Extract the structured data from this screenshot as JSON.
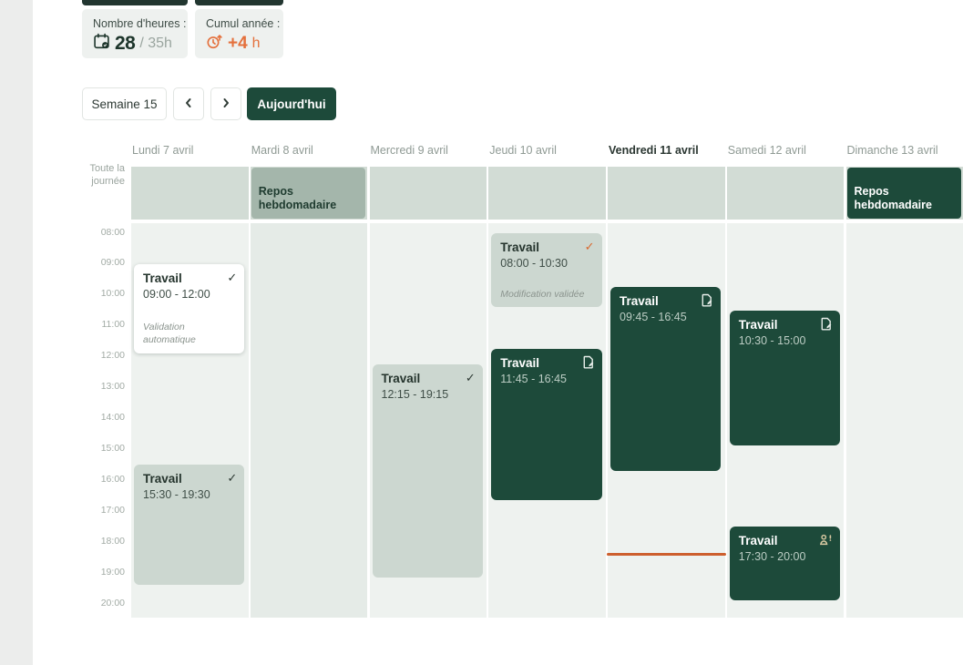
{
  "stats": {
    "hours": {
      "label": "Nombre d'heures :",
      "value": "28",
      "total": "/ 35h"
    },
    "cumul": {
      "label": "Cumul année :",
      "value": "+4",
      "unit": "h"
    }
  },
  "toolbar": {
    "week_label": "Semaine 15",
    "today_label": "Aujourd'hui"
  },
  "calendar": {
    "allday_label": "Toute la journée",
    "hours": [
      "08:00",
      "09:00",
      "10:00",
      "11:00",
      "12:00",
      "13:00",
      "14:00",
      "15:00",
      "16:00",
      "17:00",
      "18:00",
      "19:00",
      "20:00"
    ],
    "days": [
      {
        "label": "Lundi 7 avril"
      },
      {
        "label": "Mardi 8 avril",
        "tint": true
      },
      {
        "label": "Mercredi 9 avril"
      },
      {
        "label": "Jeudi 10 avril"
      },
      {
        "label": "Vendredi 11 avril",
        "today": true
      },
      {
        "label": "Samedi 12 avril"
      },
      {
        "label": "Dimanche 13 avril"
      }
    ],
    "allday_events": [
      {
        "day": 1,
        "title": "Repos hebdomadaire",
        "variant": "sage"
      },
      {
        "day": 6,
        "title": "Repos hebdomadaire",
        "variant": "dark"
      }
    ],
    "events": [
      {
        "day": 0,
        "title": "Travail",
        "time": "09:00 - 12:00",
        "start": "09:00",
        "end": "12:00",
        "variant": "white",
        "icon": "check",
        "note": "Validation automatique"
      },
      {
        "day": 0,
        "title": "Travail",
        "time": "15:30 - 19:30",
        "start": "15:30",
        "end": "19:30",
        "variant": "light",
        "icon": "check"
      },
      {
        "day": 2,
        "title": "Travail",
        "time": "12:15 - 19:15",
        "start": "12:15",
        "end": "19:15",
        "variant": "light",
        "icon": "check"
      },
      {
        "day": 3,
        "title": "Travail",
        "time": "08:00 - 10:30",
        "start": "08:00",
        "end": "10:30",
        "variant": "light",
        "icon": "check-orange",
        "note": "Modification validée"
      },
      {
        "day": 3,
        "title": "Travail",
        "time": "11:45 - 16:45",
        "start": "11:45",
        "end": "16:45",
        "variant": "dark",
        "icon": "edit"
      },
      {
        "day": 4,
        "title": "Travail",
        "time": "09:45 - 16:45",
        "start": "09:45",
        "end": "16:45",
        "variant": "dark",
        "icon": "edit"
      },
      {
        "day": 5,
        "title": "Travail",
        "time": "10:30 - 15:00",
        "start": "10:30",
        "end": "15:00",
        "variant": "dark",
        "icon": "edit"
      },
      {
        "day": 5,
        "title": "Travail",
        "time": "17:30 - 20:00",
        "start": "17:30",
        "end": "20:00",
        "variant": "dark",
        "icon": "person-alert"
      }
    ],
    "now_indicator_day": 4
  },
  "colors": {
    "accent_green": "#1d4a3a",
    "accent_orange": "#e4703c",
    "now_line": "#cd5f2e"
  }
}
